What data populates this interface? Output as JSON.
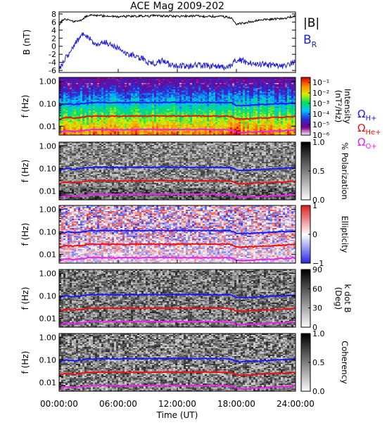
{
  "title": "ACE Mag 2009-202",
  "x_axis": {
    "label": "Time (UT)",
    "range": [
      "00:00:00",
      "24:00:00"
    ],
    "tick_labels": [
      "00:00:00",
      "06:00:00",
      "12:00:00",
      "18:00:00",
      "24:00:00"
    ],
    "tick_hours": [
      0,
      6,
      12,
      18,
      24
    ]
  },
  "chart_data": [
    {
      "type": "line",
      "panel": "magnetic-field",
      "ylabel": "B (nT)",
      "ylim": [
        -6.5,
        8.5
      ],
      "y_tick_labels": [
        "8",
        "6",
        "4",
        "2",
        "0",
        "-2",
        "-4",
        "-6"
      ],
      "y_ticks": [
        8,
        6,
        4,
        2,
        0,
        -2,
        -4,
        -6
      ],
      "x_units": "hours UT",
      "series": [
        {
          "name": "|B|",
          "color": "#000000",
          "x": [
            0,
            0.3,
            0.6,
            1,
            1.5,
            2,
            2.3,
            2.6,
            3,
            3.5,
            4,
            5,
            6,
            7,
            8,
            9,
            10,
            11,
            12,
            13,
            14,
            15,
            16,
            17,
            17.5,
            17.8,
            18,
            18.3,
            18.6,
            19,
            19.5,
            20,
            21,
            22,
            22.5,
            23,
            23.5,
            24
          ],
          "y": [
            5.3,
            6.3,
            6.8,
            6.5,
            6.0,
            6.4,
            6.6,
            7.2,
            7.6,
            7.7,
            7.6,
            7.4,
            7.3,
            7.4,
            7.5,
            7.5,
            7.6,
            7.5,
            7.4,
            7.5,
            7.5,
            7.4,
            7.4,
            7.3,
            7.1,
            6.2,
            5.5,
            5.6,
            5.7,
            5.9,
            6.1,
            6.3,
            6.6,
            6.8,
            6.9,
            7.0,
            7.3,
            7.6
          ]
        },
        {
          "name": "B_R",
          "label_main": "B",
          "label_sub": "R",
          "color": "#1f1fd8",
          "x": [
            0,
            0.3,
            0.6,
            1,
            1.3,
            1.6,
            2,
            2.3,
            2.6,
            3,
            3.5,
            4,
            4.5,
            5,
            5.5,
            6,
            6.5,
            7,
            7.5,
            8,
            8.5,
            9,
            9.5,
            10,
            10.5,
            11,
            11.5,
            12,
            13,
            14,
            15,
            16,
            17,
            17.5,
            18,
            18.5,
            19,
            20,
            21,
            22,
            23,
            23.5,
            24
          ],
          "y": [
            -5.4,
            -4.5,
            -3.2,
            -1.7,
            -0.5,
            0.7,
            1.5,
            2.6,
            3.3,
            2.1,
            1.0,
            0.5,
            1.3,
            0.6,
            0.2,
            -0.5,
            -1.3,
            -2.0,
            -2.3,
            -3.0,
            -2.9,
            -4.0,
            -4.4,
            -4.0,
            -3.5,
            -4.2,
            -4.8,
            -4.8,
            -5.0,
            -4.7,
            -4.8,
            -5.0,
            -5.2,
            -4.6,
            -3.3,
            -3.5,
            -3.9,
            -4.3,
            -4.6,
            -4.8,
            -5.0,
            -4.3,
            -4.0
          ]
        }
      ]
    },
    {
      "type": "heatmap",
      "panel": "intensity",
      "ylabel": "f (Hz)",
      "ylim": [
        0.004,
        1.5
      ],
      "y_scale": "log",
      "y_tick_labels": [
        "1.00",
        "0.10",
        "0.01"
      ],
      "y_ticks": [
        1,
        0.1,
        0.01
      ],
      "colorbar": {
        "label": "Intensity (nT²/Hz)",
        "label_main": "Intensity",
        "label_unit": "(nT²/Hz)",
        "scale": "log",
        "range": [
          1e-06,
          0.3
        ],
        "tick_labels": [
          "10⁻¹",
          "10⁻²",
          "10⁻³",
          "10⁻⁴",
          "10⁻⁵",
          "10⁻⁶"
        ],
        "tick_values": [
          0.1,
          0.01,
          0.001,
          0.0001,
          1e-05,
          1e-06
        ],
        "colors": [
          "#ffffff",
          "#7a0088",
          "#2b2bd6",
          "#00c2ff",
          "#00e060",
          "#d8f000",
          "#ff8a00",
          "#e00000"
        ]
      }
    },
    {
      "type": "heatmap",
      "panel": "polarization",
      "ylabel": "f (Hz)",
      "ylim": [
        0.004,
        1.5
      ],
      "y_scale": "log",
      "y_tick_labels": [
        "1.00",
        "0.10",
        "0.01"
      ],
      "y_ticks": [
        1,
        0.1,
        0.01
      ],
      "colorbar": {
        "label": "% Polarization",
        "range": [
          0,
          1
        ],
        "tick_labels": [
          "1.0",
          "0.5",
          "0.0"
        ],
        "tick_values": [
          1,
          0.5,
          0
        ],
        "colors": [
          "#ffffff",
          "#000000"
        ]
      }
    },
    {
      "type": "heatmap",
      "panel": "ellipticity",
      "ylabel": "f (Hz)",
      "ylim": [
        0.004,
        1.5
      ],
      "y_scale": "log",
      "y_tick_labels": [
        "1.00",
        "0.10",
        "0.01"
      ],
      "y_ticks": [
        1,
        0.1,
        0.01
      ],
      "colorbar": {
        "label": "Ellipticity",
        "range": [
          -1,
          1
        ],
        "tick_labels": [
          "1",
          "0",
          "−1"
        ],
        "tick_values": [
          1,
          0,
          -1
        ],
        "colors": [
          "#2222dd",
          "#ffffff",
          "#dd2222"
        ]
      }
    },
    {
      "type": "heatmap",
      "panel": "k-dot-b",
      "ylabel": "f (Hz)",
      "ylim": [
        0.004,
        1.5
      ],
      "y_scale": "log",
      "y_tick_labels": [
        "1.00",
        "0.10",
        "0.01"
      ],
      "y_ticks": [
        1,
        0.1,
        0.01
      ],
      "colorbar": {
        "label": "k dot B (Deg)",
        "label_main": "k dot B",
        "label_unit": "(Deg)",
        "range": [
          0,
          90
        ],
        "tick_labels": [
          "90",
          "60",
          "30",
          "0"
        ],
        "tick_values": [
          90,
          60,
          30,
          0
        ],
        "colors": [
          "#ffffff",
          "#000000"
        ]
      }
    },
    {
      "type": "heatmap",
      "panel": "coherency",
      "ylabel": "f (Hz)",
      "ylim": [
        0.004,
        1.5
      ],
      "y_scale": "log",
      "y_tick_labels": [
        "1.00",
        "0.10",
        "0.01"
      ],
      "y_ticks": [
        1,
        0.1,
        0.01
      ],
      "colorbar": {
        "label": "Coherency",
        "range": [
          0,
          1
        ],
        "tick_labels": [
          "1.0",
          "0.5",
          "0.0"
        ],
        "tick_values": [
          1,
          0.5,
          0
        ],
        "colors": [
          "#ffffff",
          "#000000"
        ]
      }
    }
  ],
  "gyrofrequency_lines": {
    "x_units": "hours UT",
    "x": [
      0,
      0.5,
      1,
      1.5,
      2,
      2.5,
      3,
      4,
      5,
      6,
      8,
      10,
      12,
      14,
      16,
      17,
      17.5,
      18,
      18.5,
      19,
      20,
      21,
      22,
      23,
      24
    ],
    "series": [
      {
        "name": "Ω_H+",
        "label_main": "Ω",
        "label_sub": "H+",
        "color": "#1a1aff",
        "y": [
          0.081,
          0.096,
          0.099,
          0.091,
          0.097,
          0.102,
          0.112,
          0.113,
          0.112,
          0.111,
          0.113,
          0.114,
          0.114,
          0.114,
          0.113,
          0.111,
          0.108,
          0.085,
          0.083,
          0.085,
          0.089,
          0.093,
          0.099,
          0.102,
          0.11
        ]
      },
      {
        "name": "Ω_He+",
        "label_main": "Ω",
        "label_sub": "He+",
        "color": "#ee1111",
        "y": [
          0.0203,
          0.024,
          0.0248,
          0.0228,
          0.0243,
          0.0255,
          0.028,
          0.0283,
          0.028,
          0.0278,
          0.0283,
          0.0285,
          0.0285,
          0.0285,
          0.0283,
          0.0278,
          0.027,
          0.0213,
          0.0208,
          0.0213,
          0.0223,
          0.0233,
          0.0248,
          0.0255,
          0.0275
        ]
      },
      {
        "name": "Ω_O+",
        "label_main": "Ω",
        "label_sub": "O+",
        "color": "#ee22ee",
        "y": [
          0.0051,
          0.006,
          0.0062,
          0.0057,
          0.0061,
          0.0064,
          0.007,
          0.0071,
          0.007,
          0.0069,
          0.0071,
          0.0071,
          0.0071,
          0.0071,
          0.0071,
          0.0069,
          0.0068,
          0.0053,
          0.0052,
          0.0053,
          0.0056,
          0.0058,
          0.0062,
          0.0064,
          0.0069
        ]
      }
    ]
  }
}
